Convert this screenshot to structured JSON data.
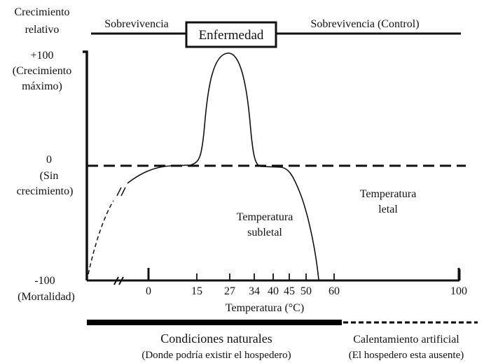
{
  "y_axis": {
    "title_line1": "Crecimiento",
    "title_line2": "relativo",
    "top_value": "+100",
    "top_desc1": "(Crecimiento",
    "top_desc2": "máximo)",
    "mid_value": "0",
    "mid_desc1": "(Sin",
    "mid_desc2": "crecimiento)",
    "bottom_value": "-100",
    "bottom_desc": "(Mortalidad)"
  },
  "top_band": {
    "left": "Sobrevivencia",
    "center": "Enfermedad",
    "right": "Sobrevivencia (Control)"
  },
  "chart_data": {
    "type": "line",
    "xlabel": "Temperatura (°C)",
    "x_ticks": [
      "0",
      "15",
      "27",
      "34",
      "40",
      "45",
      "50",
      "60",
      "100"
    ],
    "ylim": [
      -100,
      100
    ],
    "annotations": {
      "sublethal1": "Temperatura",
      "sublethal2": "subletal",
      "lethal1": "Temperatura",
      "lethal2": "letal"
    }
  },
  "bottom_band": {
    "natural_title": "Condiciones naturales",
    "natural_sub": "(Donde podría existir el hospedero)",
    "artificial_title": "Calentamiento artificial",
    "artificial_sub": "(El hospedero esta ausente)"
  }
}
